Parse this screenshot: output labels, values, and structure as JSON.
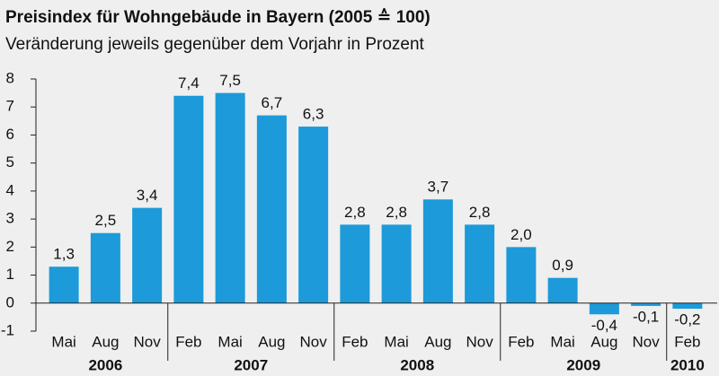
{
  "chart_data": {
    "type": "bar",
    "title": "Preisindex für Wohngebäude in Bayern (2005 ≙ 100)",
    "subtitle": "Veränderung jeweils gegenüber dem Vorjahr in Prozent",
    "categories": [
      "Mai",
      "Aug",
      "Nov",
      "Feb",
      "Mai",
      "Aug",
      "Nov",
      "Feb",
      "Mai",
      "Aug",
      "Nov",
      "Feb",
      "Mai",
      "Aug",
      "Nov",
      "Feb"
    ],
    "values": [
      1.3,
      2.5,
      3.4,
      7.4,
      7.5,
      6.7,
      6.3,
      2.8,
      2.8,
      3.7,
      2.8,
      2.0,
      0.9,
      -0.4,
      -0.1,
      -0.2
    ],
    "value_labels": [
      "1,3",
      "2,5",
      "3,4",
      "7,4",
      "7,5",
      "6,7",
      "6,3",
      "2,8",
      "2,8",
      "3,7",
      "2,8",
      "2,0",
      "0,9",
      "-0,4",
      "-0,1",
      "-0,2"
    ],
    "year_groups": [
      {
        "label": "2006",
        "count": 3
      },
      {
        "label": "2007",
        "count": 4
      },
      {
        "label": "2008",
        "count": 4
      },
      {
        "label": "2009",
        "count": 4
      },
      {
        "label": "2010",
        "count": 1
      }
    ],
    "color": "#1c9ad9",
    "ylim": [
      -1,
      8
    ],
    "yticks": [
      -1,
      0,
      1,
      2,
      3,
      4,
      5,
      6,
      7,
      8
    ]
  }
}
